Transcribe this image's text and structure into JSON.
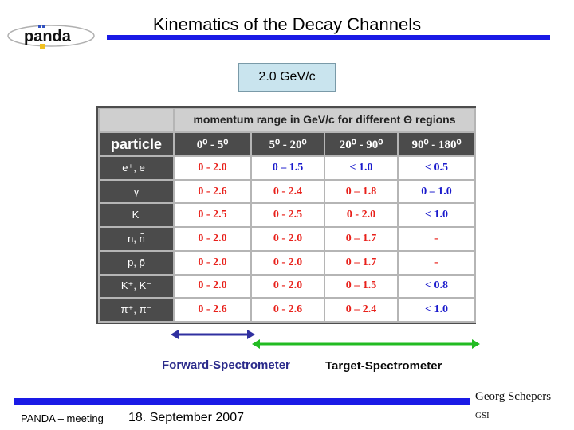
{
  "title": "Kinematics of the Decay Channels",
  "momentum_label": "2.0 GeV/c",
  "table": {
    "header_span": "momentum range in GeV/c for different Θ regions",
    "particle_header": "particle",
    "theta_ranges": [
      "0⁰ - 5⁰",
      "5⁰ - 20⁰",
      "20⁰ - 90⁰",
      "90⁰ - 180⁰"
    ],
    "rows": [
      {
        "particle": "e⁺, e⁻",
        "values": [
          "0 - 2.0",
          "0 – 1.5",
          "< 1.0",
          "< 0.5"
        ]
      },
      {
        "particle": "γ",
        "values": [
          "0 - 2.6",
          "0 - 2.4",
          "0 – 1.8",
          "0 – 1.0"
        ]
      },
      {
        "particle": "Kₗ",
        "values": [
          "0 - 2.5",
          "0 - 2.5",
          "0 - 2.0",
          "< 1.0"
        ]
      },
      {
        "particle": "n, n̄",
        "values": [
          "0 - 2.0",
          "0 - 2.0",
          "0 – 1.7",
          "-"
        ]
      },
      {
        "particle": "p, p̄",
        "values": [
          "0 - 2.0",
          "0 - 2.0",
          "0 – 1.7",
          "-"
        ]
      },
      {
        "particle": "K⁺, K⁻",
        "values": [
          "0 - 2.0",
          "0 - 2.0",
          "0 – 1.5",
          "< 0.8"
        ]
      },
      {
        "particle": "π⁺, π⁻",
        "values": [
          "0 - 2.6",
          "0 - 2.6",
          "0 – 2.4",
          "< 1.0"
        ]
      }
    ]
  },
  "forward_label": "Forward-Spectrometer",
  "target_label": "Target-Spectrometer",
  "author": "Georg Schepers",
  "institute": "GSI",
  "meeting": "PANDA – meeting",
  "date": "18. September 2007",
  "logo_text": "panda",
  "colors": {
    "accent_bar": "#1a1ae6",
    "forward_arrow": "#3030a0",
    "target_arrow": "#22bb22",
    "value_red": "#e8201a",
    "value_blue": "#1a1acc"
  }
}
